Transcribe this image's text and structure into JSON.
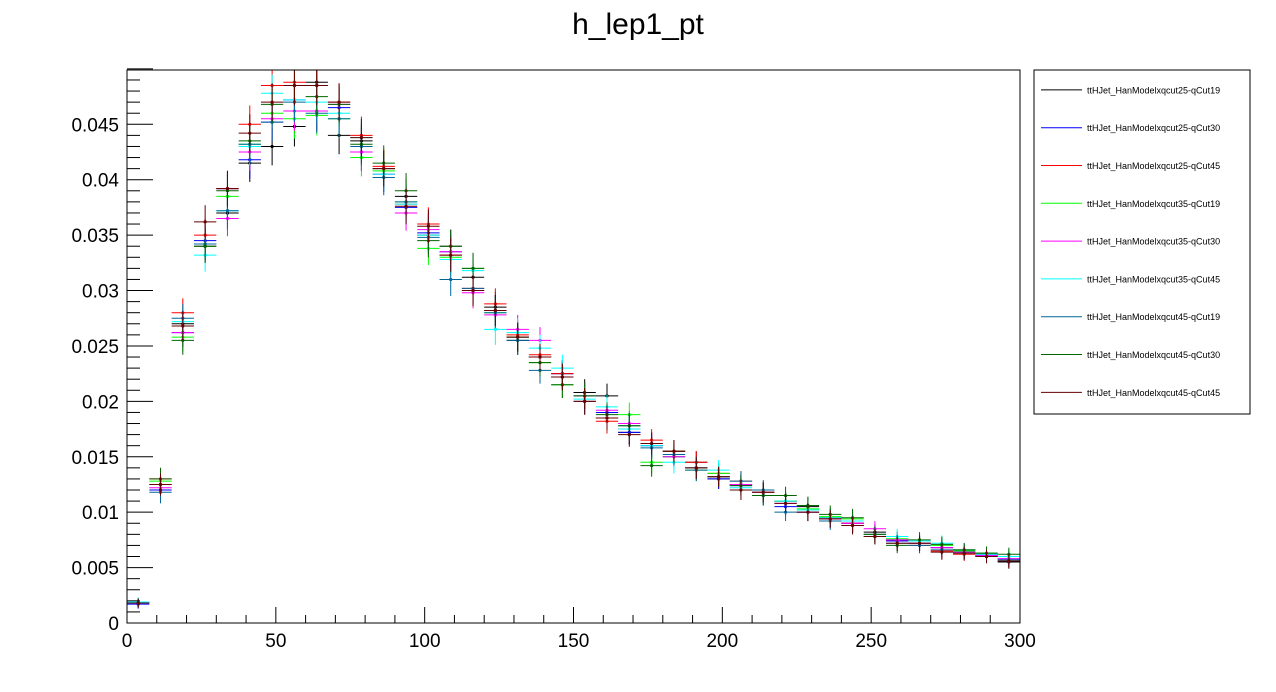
{
  "chart_data": {
    "type": "scatter",
    "title": "h_lep1_pt",
    "xlabel": "",
    "ylabel": "",
    "xlim": [
      0,
      300
    ],
    "ylim": [
      0,
      0.0499
    ],
    "x_ticks": [
      0,
      50,
      100,
      150,
      200,
      250,
      300
    ],
    "x_tick_labels": [
      "0",
      "50",
      "100",
      "150",
      "200",
      "250",
      "300"
    ],
    "y_ticks": [
      0,
      0.005,
      0.01,
      0.015,
      0.02,
      0.025,
      0.03,
      0.035,
      0.04,
      0.045
    ],
    "y_tick_labels": [
      "0",
      "0.005",
      "0.01",
      "0.015",
      "0.02",
      "0.025",
      "0.03",
      "0.035",
      "0.04",
      "0.045"
    ],
    "grid": false,
    "legend_position": "right",
    "bin_width": 7.5,
    "x": [
      3.75,
      11.25,
      18.75,
      26.25,
      33.75,
      41.25,
      48.75,
      56.25,
      63.75,
      71.25,
      78.75,
      86.25,
      93.75,
      101.25,
      108.75,
      116.25,
      123.75,
      131.25,
      138.75,
      146.25,
      153.75,
      161.25,
      168.75,
      176.25,
      183.75,
      191.25,
      198.75,
      206.25,
      213.75,
      221.25,
      228.75,
      236.25,
      243.75,
      251.25,
      258.75,
      266.25,
      273.75,
      281.25,
      288.75,
      296.25
    ],
    "series": [
      {
        "name": "ttHJet_HanModelxqcut25-qCut19",
        "color": "#000000",
        "values": [
          0.0018,
          0.0125,
          0.027,
          0.034,
          0.037,
          0.0415,
          0.043,
          0.0448,
          0.0488,
          0.044,
          0.0435,
          0.041,
          0.0385,
          0.035,
          0.034,
          0.0312,
          0.0285,
          0.0255,
          0.024,
          0.0225,
          0.0208,
          0.0205,
          0.0172,
          0.016,
          0.0155,
          0.0145,
          0.013,
          0.0125,
          0.0118,
          0.011,
          0.0105,
          0.0095,
          0.009,
          0.0082,
          0.0075,
          0.0072,
          0.0068,
          0.0066,
          0.0062,
          0.0055
        ],
        "errors": [
          0.0004,
          0.001,
          0.0013,
          0.0015,
          0.0016,
          0.0017,
          0.0017,
          0.0018,
          0.0018,
          0.0017,
          0.0017,
          0.0016,
          0.0016,
          0.0015,
          0.0015,
          0.0014,
          0.0014,
          0.0013,
          0.0012,
          0.0012,
          0.0012,
          0.0011,
          0.0011,
          0.001,
          0.001,
          0.001,
          0.0009,
          0.0009,
          0.0009,
          0.0008,
          0.0008,
          0.0008,
          0.0008,
          0.0007,
          0.0007,
          0.0007,
          0.0007,
          0.0006,
          0.0006,
          0.0006
        ]
      },
      {
        "name": "ttHJet_HanModelxqcut25-qCut30",
        "color": "#0000ff",
        "values": [
          0.0017,
          0.012,
          0.0262,
          0.0345,
          0.0392,
          0.0418,
          0.0452,
          0.0472,
          0.0462,
          0.0465,
          0.0425,
          0.0405,
          0.0375,
          0.0352,
          0.0335,
          0.03,
          0.0282,
          0.0258,
          0.024,
          0.0225,
          0.0205,
          0.019,
          0.0172,
          0.016,
          0.015,
          0.014,
          0.013,
          0.0124,
          0.0115,
          0.0105,
          0.01,
          0.0094,
          0.009,
          0.008,
          0.0074,
          0.0072,
          0.0068,
          0.0064,
          0.0061,
          0.0058
        ],
        "errors": [
          0.0004,
          0.001,
          0.0013,
          0.0015,
          0.0016,
          0.0017,
          0.0017,
          0.0018,
          0.0018,
          0.0017,
          0.0017,
          0.0016,
          0.0016,
          0.0015,
          0.0015,
          0.0014,
          0.0014,
          0.0013,
          0.0012,
          0.0012,
          0.0012,
          0.0011,
          0.0011,
          0.001,
          0.001,
          0.001,
          0.0009,
          0.0009,
          0.0009,
          0.0008,
          0.0008,
          0.0008,
          0.0008,
          0.0007,
          0.0007,
          0.0007,
          0.0007,
          0.0006,
          0.0006,
          0.0006
        ]
      },
      {
        "name": "ttHJet_HanModelxqcut25-qCut45",
        "color": "#ff0000",
        "values": [
          0.0018,
          0.013,
          0.028,
          0.035,
          0.0392,
          0.045,
          0.0485,
          0.0488,
          0.0485,
          0.047,
          0.044,
          0.0412,
          0.0378,
          0.036,
          0.0332,
          0.0302,
          0.0288,
          0.026,
          0.0242,
          0.0225,
          0.02,
          0.0182,
          0.0175,
          0.0165,
          0.0155,
          0.0145,
          0.0135,
          0.0128,
          0.0118,
          0.011,
          0.01,
          0.0095,
          0.009,
          0.008,
          0.0075,
          0.007,
          0.0065,
          0.0062,
          0.006,
          0.0056
        ],
        "errors": [
          0.0004,
          0.001,
          0.0013,
          0.0015,
          0.0016,
          0.0017,
          0.0017,
          0.0018,
          0.0018,
          0.0017,
          0.0017,
          0.0016,
          0.0016,
          0.0015,
          0.0015,
          0.0014,
          0.0014,
          0.0013,
          0.0012,
          0.0012,
          0.0012,
          0.0011,
          0.0011,
          0.001,
          0.001,
          0.001,
          0.0009,
          0.0009,
          0.0009,
          0.0008,
          0.0008,
          0.0008,
          0.0008,
          0.0007,
          0.0007,
          0.0007,
          0.0007,
          0.0006,
          0.0006,
          0.0006
        ]
      },
      {
        "name": "ttHJet_HanModelxqcut35-qCut19",
        "color": "#00ff00",
        "values": [
          0.0019,
          0.0128,
          0.0258,
          0.0342,
          0.0385,
          0.0432,
          0.046,
          0.0455,
          0.0458,
          0.0455,
          0.042,
          0.0408,
          0.038,
          0.0338,
          0.033,
          0.032,
          0.028,
          0.0258,
          0.0235,
          0.0215,
          0.0205,
          0.0185,
          0.0188,
          0.0145,
          0.015,
          0.0138,
          0.0135,
          0.0125,
          0.0118,
          0.011,
          0.0103,
          0.0096,
          0.0094,
          0.0078,
          0.0076,
          0.0072,
          0.007,
          0.0065,
          0.0063,
          0.006
        ],
        "errors": [
          0.0004,
          0.001,
          0.0013,
          0.0015,
          0.0016,
          0.0017,
          0.0017,
          0.0018,
          0.0018,
          0.0017,
          0.0017,
          0.0016,
          0.0016,
          0.0015,
          0.0015,
          0.0014,
          0.0014,
          0.0013,
          0.0012,
          0.0012,
          0.0012,
          0.0011,
          0.0011,
          0.001,
          0.001,
          0.001,
          0.0009,
          0.0009,
          0.0009,
          0.0008,
          0.0008,
          0.0008,
          0.0008,
          0.0007,
          0.0007,
          0.0007,
          0.0007,
          0.0006,
          0.0006,
          0.0006
        ]
      },
      {
        "name": "ttHJet_HanModelxqcut35-qCut30",
        "color": "#ff00ff",
        "values": [
          0.0018,
          0.0122,
          0.0262,
          0.0342,
          0.0365,
          0.0425,
          0.0455,
          0.0462,
          0.0462,
          0.0468,
          0.0425,
          0.0405,
          0.037,
          0.0355,
          0.0335,
          0.0298,
          0.0278,
          0.0265,
          0.0255,
          0.0222,
          0.0205,
          0.0192,
          0.018,
          0.0162,
          0.015,
          0.014,
          0.0132,
          0.0125,
          0.0118,
          0.0108,
          0.01,
          0.0094,
          0.009,
          0.0085,
          0.0075,
          0.0072,
          0.0068,
          0.0064,
          0.0061,
          0.0058
        ],
        "errors": [
          0.0004,
          0.001,
          0.0013,
          0.0015,
          0.0016,
          0.0017,
          0.0017,
          0.0018,
          0.0018,
          0.0017,
          0.0017,
          0.0016,
          0.0016,
          0.0015,
          0.0015,
          0.0014,
          0.0014,
          0.0013,
          0.0012,
          0.0012,
          0.0012,
          0.0011,
          0.0011,
          0.001,
          0.001,
          0.001,
          0.0009,
          0.0009,
          0.0009,
          0.0008,
          0.0008,
          0.0008,
          0.0008,
          0.0007,
          0.0007,
          0.0007,
          0.0007,
          0.0006,
          0.0006,
          0.0006
        ]
      },
      {
        "name": "ttHJet_HanModelxqcut35-qCut45",
        "color": "#00ffff",
        "values": [
          0.0019,
          0.0125,
          0.0272,
          0.0332,
          0.0372,
          0.043,
          0.0478,
          0.0472,
          0.047,
          0.046,
          0.0438,
          0.0405,
          0.0378,
          0.035,
          0.0328,
          0.0318,
          0.0265,
          0.0262,
          0.0248,
          0.023,
          0.0202,
          0.0195,
          0.0175,
          0.016,
          0.0145,
          0.014,
          0.0138,
          0.0122,
          0.0115,
          0.011,
          0.0102,
          0.0095,
          0.0092,
          0.008,
          0.0078,
          0.0074,
          0.0072,
          0.0066,
          0.0062,
          0.006
        ],
        "errors": [
          0.0004,
          0.001,
          0.0013,
          0.0015,
          0.0016,
          0.0017,
          0.0017,
          0.0018,
          0.0018,
          0.0017,
          0.0017,
          0.0016,
          0.0016,
          0.0015,
          0.0015,
          0.0014,
          0.0014,
          0.0013,
          0.0012,
          0.0012,
          0.0012,
          0.0011,
          0.0011,
          0.001,
          0.001,
          0.001,
          0.0009,
          0.0009,
          0.0009,
          0.0008,
          0.0008,
          0.0008,
          0.0008,
          0.0007,
          0.0007,
          0.0007,
          0.0007,
          0.0006,
          0.0006,
          0.0006
        ]
      },
      {
        "name": "ttHJet_HanModelxqcut45-qCut19",
        "color": "#006699",
        "values": [
          0.0018,
          0.0118,
          0.0275,
          0.0342,
          0.0372,
          0.0432,
          0.0452,
          0.047,
          0.046,
          0.0455,
          0.043,
          0.0402,
          0.038,
          0.0348,
          0.031,
          0.0302,
          0.028,
          0.0255,
          0.0228,
          0.0222,
          0.02,
          0.0185,
          0.0178,
          0.0158,
          0.0152,
          0.0138,
          0.0132,
          0.0128,
          0.012,
          0.01,
          0.01,
          0.0092,
          0.0088,
          0.0078,
          0.0072,
          0.007,
          0.0066,
          0.0063,
          0.006,
          0.0057
        ],
        "errors": [
          0.0004,
          0.001,
          0.0013,
          0.0015,
          0.0016,
          0.0017,
          0.0017,
          0.0018,
          0.0018,
          0.0017,
          0.0017,
          0.0016,
          0.0016,
          0.0015,
          0.0015,
          0.0014,
          0.0014,
          0.0013,
          0.0012,
          0.0012,
          0.0012,
          0.0011,
          0.0011,
          0.001,
          0.001,
          0.001,
          0.0009,
          0.0009,
          0.0009,
          0.0008,
          0.0008,
          0.0008,
          0.0008,
          0.0007,
          0.0007,
          0.0007,
          0.0007,
          0.0006,
          0.0006,
          0.0006
        ]
      },
      {
        "name": "ttHJet_HanModelxqcut45-qCut30",
        "color": "#006600",
        "values": [
          0.0018,
          0.013,
          0.0255,
          0.034,
          0.039,
          0.0435,
          0.0468,
          0.0485,
          0.0475,
          0.0468,
          0.0432,
          0.0415,
          0.039,
          0.0345,
          0.034,
          0.032,
          0.0282,
          0.0258,
          0.0235,
          0.0215,
          0.0205,
          0.0188,
          0.0178,
          0.0142,
          0.0155,
          0.014,
          0.0132,
          0.0124,
          0.0115,
          0.0115,
          0.0106,
          0.0098,
          0.0095,
          0.008,
          0.007,
          0.0075,
          0.0071,
          0.0066,
          0.0063,
          0.0062
        ],
        "errors": [
          0.0004,
          0.001,
          0.0013,
          0.0015,
          0.0016,
          0.0017,
          0.0017,
          0.0018,
          0.0018,
          0.0017,
          0.0017,
          0.0016,
          0.0016,
          0.0015,
          0.0015,
          0.0014,
          0.0014,
          0.0013,
          0.0012,
          0.0012,
          0.0012,
          0.0011,
          0.0011,
          0.001,
          0.001,
          0.001,
          0.0009,
          0.0009,
          0.0009,
          0.0008,
          0.0008,
          0.0008,
          0.0008,
          0.0007,
          0.0007,
          0.0007,
          0.0007,
          0.0006,
          0.0006,
          0.0006
        ]
      },
      {
        "name": "ttHJet_HanModelxqcut45-qCut45",
        "color": "#660000",
        "values": [
          0.0018,
          0.0125,
          0.0268,
          0.0362,
          0.0392,
          0.0442,
          0.047,
          0.0485,
          0.0485,
          0.047,
          0.0438,
          0.041,
          0.0376,
          0.0358,
          0.0332,
          0.03,
          0.0282,
          0.0258,
          0.024,
          0.0222,
          0.02,
          0.0185,
          0.017,
          0.0162,
          0.0155,
          0.014,
          0.0132,
          0.012,
          0.0118,
          0.0108,
          0.01,
          0.0094,
          0.0088,
          0.0078,
          0.0072,
          0.0072,
          0.0064,
          0.0063,
          0.006,
          0.0056
        ],
        "errors": [
          0.0004,
          0.001,
          0.0013,
          0.0015,
          0.0016,
          0.0017,
          0.0017,
          0.0018,
          0.0018,
          0.0017,
          0.0017,
          0.0016,
          0.0016,
          0.0015,
          0.0015,
          0.0014,
          0.0014,
          0.0013,
          0.0012,
          0.0012,
          0.0012,
          0.0011,
          0.0011,
          0.001,
          0.001,
          0.001,
          0.0009,
          0.0009,
          0.0009,
          0.0008,
          0.0008,
          0.0008,
          0.0008,
          0.0007,
          0.0007,
          0.0007,
          0.0007,
          0.0006,
          0.0006,
          0.0006
        ]
      }
    ]
  }
}
